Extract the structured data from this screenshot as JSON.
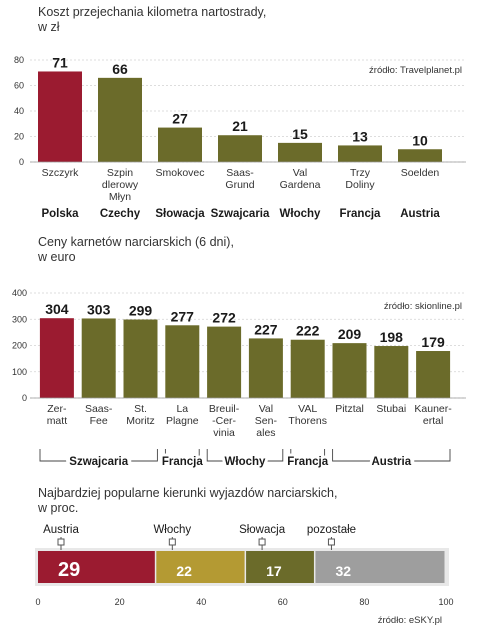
{
  "colors": {
    "highlight": "#9b1b30",
    "bar": "#6b6b2a",
    "wlochy_segment": "#b49a33",
    "slowacja_segment": "#6b6b2a",
    "other_segment": "#9e9e9e"
  },
  "chart_data": [
    {
      "type": "bar",
      "title": "Koszt przejechania kilometra nartostrady,",
      "subtitle": "w zł",
      "source": "źródło: Travelplanet.pl",
      "ylim": [
        0,
        80
      ],
      "yticks": [
        "0",
        "20",
        "40",
        "60",
        "80"
      ],
      "categories": [
        [
          "Szczyrk"
        ],
        [
          "Szpin",
          "dlerowy",
          "Młyn"
        ],
        [
          "Smokovec"
        ],
        [
          "Saas-",
          "Grund"
        ],
        [
          "Val",
          "Gardena"
        ],
        [
          "Trzy",
          "Doliny"
        ],
        [
          "Soelden"
        ]
      ],
      "values": [
        71,
        66,
        27,
        21,
        15,
        13,
        10
      ],
      "value_labels": [
        "71",
        "66",
        "27",
        "21",
        "15",
        "13",
        "10"
      ],
      "highlight_index": 0,
      "countries": [
        "Polska",
        "Czechy",
        "Słowacja",
        "Szwajcaria",
        "Włochy",
        "Francja",
        "Austria"
      ]
    },
    {
      "type": "bar",
      "title": "Ceny karnetów narciarskich (6 dni),",
      "subtitle": "w euro",
      "source": "źródło: skionline.pl",
      "ylim": [
        0,
        400
      ],
      "yticks": [
        "0",
        "100",
        "200",
        "300",
        "400"
      ],
      "categories": [
        [
          "Zer-",
          "matt"
        ],
        [
          "Saas-",
          "Fee"
        ],
        [
          "St.",
          "Moritz"
        ],
        [
          "La",
          "Plagne"
        ],
        [
          "Breuil-",
          "-Cer-",
          "vinia"
        ],
        [
          "Val",
          "Sen-",
          "ales"
        ],
        [
          "VAL",
          "Thorens"
        ],
        [
          "Pitztal"
        ],
        [
          "Stubai"
        ],
        [
          "Kauner-",
          "ertal"
        ]
      ],
      "values": [
        304,
        303,
        299,
        277,
        272,
        227,
        222,
        209,
        198,
        179
      ],
      "value_labels": [
        "304",
        "303",
        "299",
        "277",
        "272",
        "227",
        "222",
        "209",
        "198",
        "179"
      ],
      "highlight_index": 0,
      "groups": [
        {
          "label": "Szwajcaria",
          "start": 0,
          "end": 2
        },
        {
          "label": "Francja",
          "start": 3,
          "end": 3
        },
        {
          "label": "Włochy",
          "start": 4,
          "end": 5
        },
        {
          "label": "Francja",
          "start": 6,
          "end": 6
        },
        {
          "label": "Austria",
          "start": 7,
          "end": 9
        }
      ]
    },
    {
      "type": "bar",
      "stacked": true,
      "title": "Najbardziej popularne kierunki wyjazdów narciarskich,",
      "subtitle": "w proc.",
      "source": "źródło: eSKY.pl",
      "xlim": [
        0,
        100
      ],
      "xticks": [
        "0",
        "20",
        "40",
        "60",
        "80",
        "100"
      ],
      "series": [
        {
          "name": "Austria",
          "value": 29,
          "label": "29"
        },
        {
          "name": "Włochy",
          "value": 22,
          "label": "22"
        },
        {
          "name": "Słowacja",
          "value": 17,
          "label": "17"
        },
        {
          "name": "pozostałe",
          "value": 32,
          "label": "32"
        }
      ]
    }
  ]
}
